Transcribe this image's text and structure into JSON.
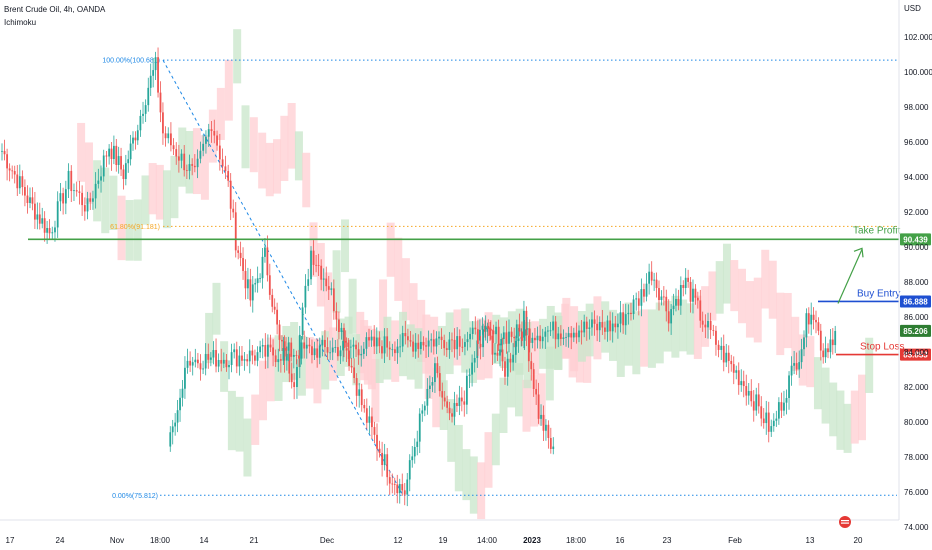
{
  "header": {
    "symbol_line": "Brent Crude Oil, 4h, OANDA",
    "indicator": "Ichimoku"
  },
  "colors": {
    "up": "#26a69a",
    "down": "#ef5350",
    "cloud_bull": "#c8e6c9",
    "cloud_bear": "#ffcdd2",
    "take_profit": "#43a047",
    "buy_entry": "#1e4fd1",
    "stop_loss": "#e53935",
    "current": "#2e7d32",
    "fib_0": "#1e88e5",
    "fib_618": "#f5a623"
  },
  "chart_data": {
    "type": "candlestick",
    "currency": "USD",
    "ylim": [
      74,
      104
    ],
    "y_ticks": [
      "74.000",
      "76.000",
      "78.000",
      "80.000",
      "82.000",
      "84.000",
      "86.000",
      "88.000",
      "90.000",
      "92.000",
      "94.000",
      "96.000",
      "98.000",
      "100.000",
      "102.000"
    ],
    "x_ticks": [
      "17",
      "24",
      "Nov",
      "18:00",
      "14",
      "21",
      "Dec",
      "12",
      "19",
      "14:00",
      "2023",
      "18:00",
      "16",
      "23",
      "Feb",
      "13",
      "20"
    ],
    "fib_levels": [
      {
        "label": "100.00%(100.681)",
        "price": 100.681
      },
      {
        "label": "61.80%(91.181)",
        "price": 91.181
      },
      {
        "label": "0.00%(75.812)",
        "price": 75.812
      }
    ],
    "levels": {
      "take_profit": {
        "label": "Take Profit",
        "price": "90.439"
      },
      "buy_entry": {
        "label": "Buy Entry",
        "price": "86.888"
      },
      "current": {
        "price": "85.206"
      },
      "stop_loss": {
        "label": "Stop Loss",
        "price": "83.853"
      }
    },
    "path": [
      {
        "x": "17",
        "y": 95.5
      },
      {
        "x": "17",
        "y": 92.5
      },
      {
        "x": "24",
        "y": 90.8
      },
      {
        "x": "24",
        "y": 93.8
      },
      {
        "x": "24",
        "y": 92.2
      },
      {
        "x": "Nov",
        "y": 95.8
      },
      {
        "x": "Nov",
        "y": 94.2
      },
      {
        "x": "Nov",
        "y": 97.0
      },
      {
        "x": "18:00",
        "y": 99.2
      },
      {
        "x": "18:00",
        "y": 100.3
      },
      {
        "x": "18:00",
        "y": 96.5
      },
      {
        "x": "14",
        "y": 94.0
      },
      {
        "x": "14",
        "y": 97.2
      },
      {
        "x": "14",
        "y": 93.5
      },
      {
        "x": "21",
        "y": 90.4
      },
      {
        "x": "21",
        "y": 87.0
      },
      {
        "x": "21",
        "y": 89.5
      },
      {
        "x": "21",
        "y": 84.5
      },
      {
        "x": "21",
        "y": 82.5
      },
      {
        "x": "Dec",
        "y": 89.8
      },
      {
        "x": "Dec",
        "y": 87.8
      },
      {
        "x": "Dec",
        "y": 84.2
      },
      {
        "x": "Dec",
        "y": 80.5
      },
      {
        "x": "12",
        "y": 77.0
      },
      {
        "x": "12",
        "y": 76.0
      },
      {
        "x": "12",
        "y": 80.0
      },
      {
        "x": "19",
        "y": 82.8
      },
      {
        "x": "19",
        "y": 80.0
      },
      {
        "x": "19",
        "y": 81.5
      },
      {
        "x": "14:00",
        "y": 85.5
      },
      {
        "x": "14:00",
        "y": 83.0
      },
      {
        "x": "2023",
        "y": 85.8
      },
      {
        "x": "2023",
        "y": 80.5
      },
      {
        "x": "2023",
        "y": 78.2
      },
      {
        "x": "18:00",
        "y": 79.8
      },
      {
        "x": "18:00",
        "y": 80.2
      },
      {
        "x": "18:00",
        "y": 83.5
      },
      {
        "x": "16",
        "y": 85.5
      },
      {
        "x": "16",
        "y": 87.0
      },
      {
        "x": "23",
        "y": 88.6
      },
      {
        "x": "23",
        "y": 86.2
      },
      {
        "x": "23",
        "y": 88.0
      },
      {
        "x": "23",
        "y": 85.8
      },
      {
        "x": "Feb",
        "y": 84.0
      },
      {
        "x": "Feb",
        "y": 82.0
      },
      {
        "x": "Feb",
        "y": 79.5
      },
      {
        "x": "13",
        "y": 84.0
      },
      {
        "x": "13",
        "y": 86.7
      },
      {
        "x": "13",
        "y": 84.0
      },
      {
        "x": "13",
        "y": 85.2
      }
    ]
  }
}
